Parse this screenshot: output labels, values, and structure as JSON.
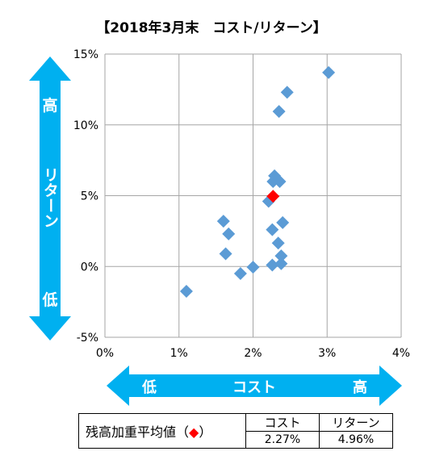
{
  "chart_data": {
    "type": "scatter",
    "title": "【2018年3月末　コスト/リターン】",
    "xlabel": "コスト",
    "ylabel": "リターン",
    "x_axis_low": "低",
    "x_axis_high": "高",
    "y_axis_high": "高",
    "y_axis_low": "低",
    "xlim": [
      0,
      4
    ],
    "ylim": [
      -5,
      15
    ],
    "x_ticks": [
      0,
      1,
      2,
      3,
      4
    ],
    "x_tick_labels": [
      "0%",
      "1%",
      "2%",
      "3%",
      "4%"
    ],
    "y_ticks": [
      -5,
      0,
      5,
      10,
      15
    ],
    "y_tick_labels": [
      "-5%",
      "0%",
      "5%",
      "10%",
      "15%"
    ],
    "grid": true,
    "series": [
      {
        "marker": "diamond",
        "color": "#5b9bd5",
        "points": [
          {
            "x": 1.1,
            "y": -1.75
          },
          {
            "x": 1.6,
            "y": 3.2
          },
          {
            "x": 1.67,
            "y": 2.3
          },
          {
            "x": 1.63,
            "y": 0.9
          },
          {
            "x": 1.83,
            "y": -0.5
          },
          {
            "x": 2.0,
            "y": -0.05
          },
          {
            "x": 2.21,
            "y": 4.6
          },
          {
            "x": 2.26,
            "y": 2.6
          },
          {
            "x": 2.26,
            "y": 0.1
          },
          {
            "x": 2.27,
            "y": 6.0
          },
          {
            "x": 2.29,
            "y": 6.4
          },
          {
            "x": 2.34,
            "y": 1.65
          },
          {
            "x": 2.35,
            "y": 10.95
          },
          {
            "x": 2.36,
            "y": 6.0
          },
          {
            "x": 2.38,
            "y": 0.75
          },
          {
            "x": 2.38,
            "y": 0.2
          },
          {
            "x": 2.4,
            "y": 3.1
          },
          {
            "x": 2.46,
            "y": 12.3
          },
          {
            "x": 3.02,
            "y": 13.7
          }
        ]
      },
      {
        "marker": "diamond",
        "color": "#ff0000",
        "points": [
          {
            "x": 2.27,
            "y": 4.96
          }
        ]
      }
    ]
  },
  "summary_table": {
    "label": "残高加重平均値（",
    "label_marker": "◆",
    "label_end": "）",
    "col_cost": "コスト",
    "col_return": "リターン",
    "cost_value": "2.27%",
    "return_value": "4.96%"
  },
  "colors": {
    "arrow": "#00b0f0",
    "grid": "#a6a6a6",
    "point": "#5b9bd5",
    "average_point": "#ff0000"
  }
}
